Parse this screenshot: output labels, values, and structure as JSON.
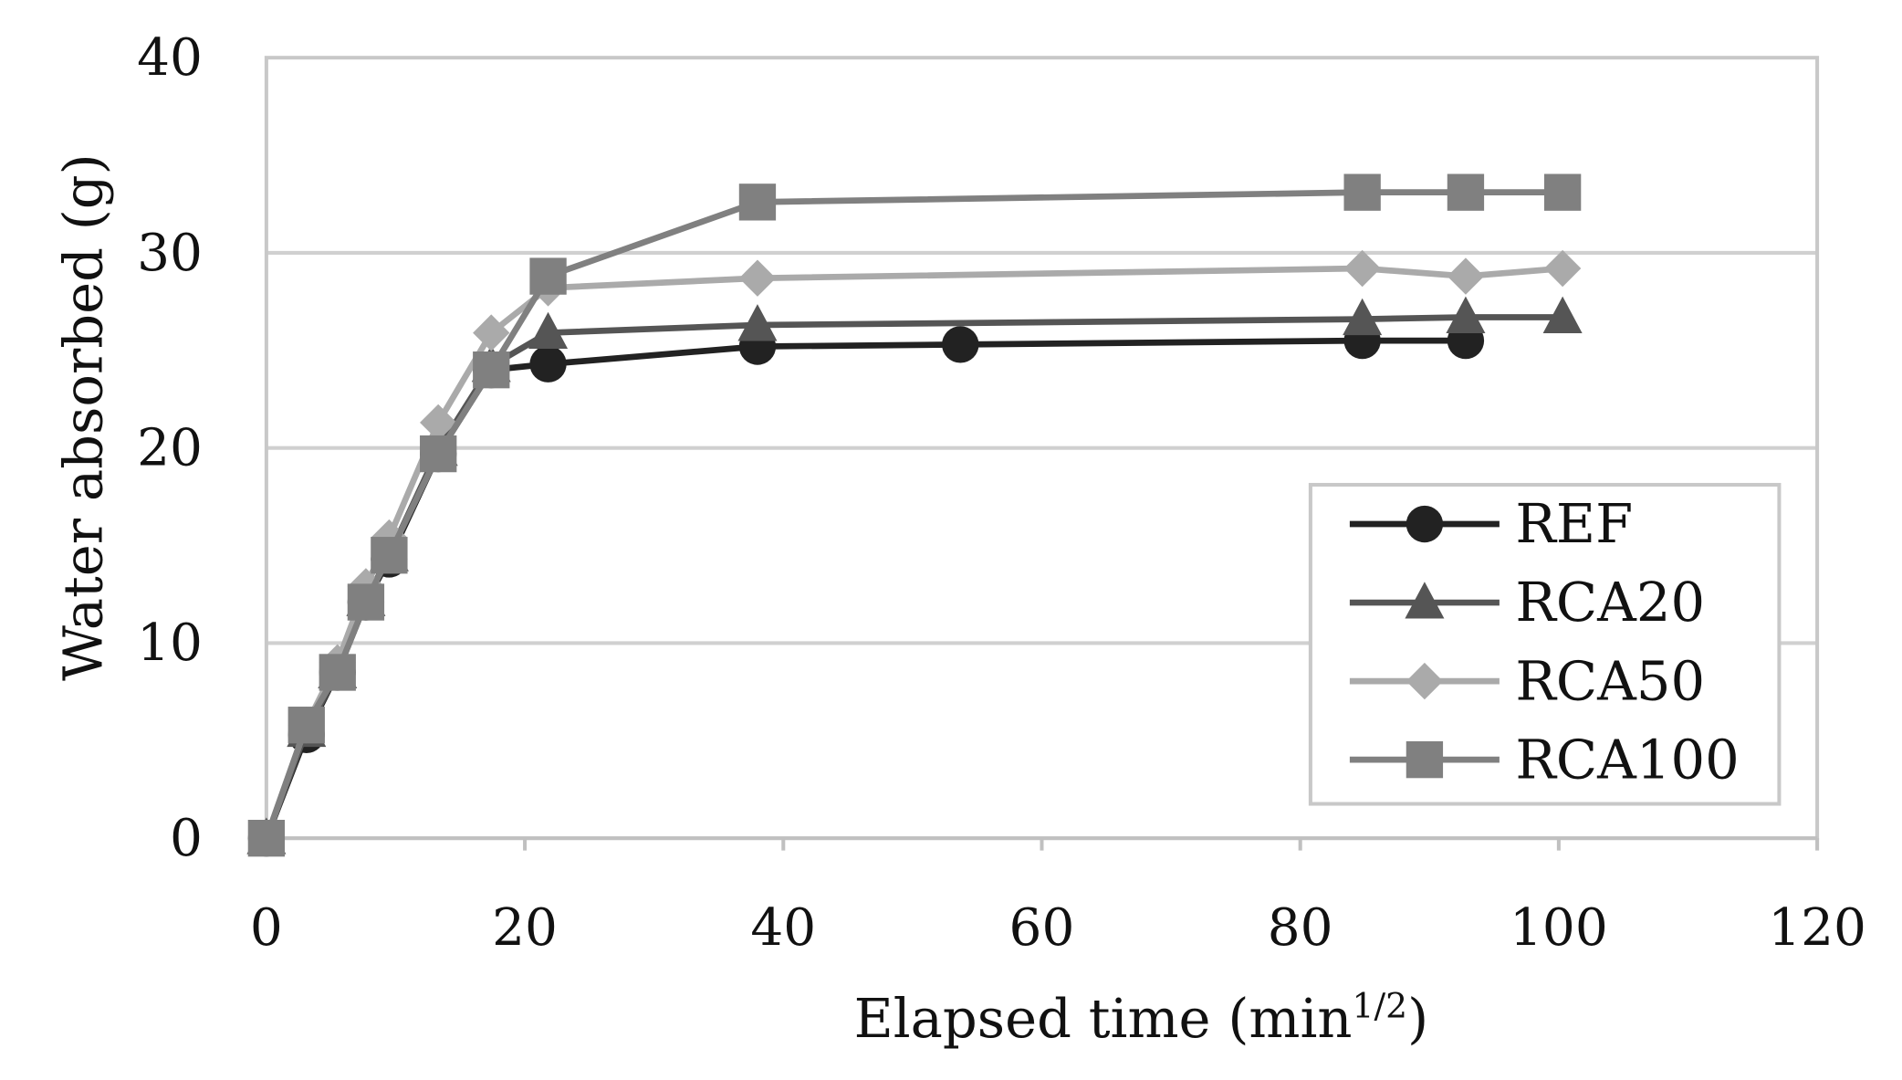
{
  "chart_data": {
    "type": "line",
    "title": "",
    "xlabel": "Elapsed time (min",
    "xlabel_sup": "1/2",
    "xlabel_close": ")",
    "ylabel": "Water absorbed (g)",
    "xlim": [
      0,
      120
    ],
    "ylim": [
      0,
      40
    ],
    "xticks": [
      0,
      20,
      40,
      60,
      80,
      100,
      120
    ],
    "yticks": [
      0,
      10,
      20,
      30,
      40
    ],
    "grid": "horizontal",
    "legend_position": "bottom-right",
    "series": [
      {
        "name": "REF",
        "color": "#222222",
        "marker": "circle",
        "x": [
          0,
          3.1,
          5.5,
          7.7,
          9.5,
          13.3,
          17.4,
          21.8,
          38,
          53.7,
          84.8,
          92.8
        ],
        "y": [
          0,
          5.3,
          8.5,
          12.1,
          14.3,
          19.7,
          24.0,
          24.3,
          25.2,
          25.3,
          25.5,
          25.5
        ]
      },
      {
        "name": "RCA20",
        "color": "#555555",
        "marker": "triangle",
        "x": [
          0,
          3.1,
          5.5,
          7.7,
          9.5,
          13.3,
          17.4,
          21.8,
          38,
          84.8,
          92.8,
          100.3
        ],
        "y": [
          0,
          5.5,
          8.5,
          12.2,
          14.5,
          19.9,
          24.2,
          25.9,
          26.3,
          26.6,
          26.7,
          26.7
        ]
      },
      {
        "name": "RCA50",
        "color": "#aaaaaa",
        "marker": "diamond",
        "x": [
          0,
          3.1,
          5.5,
          7.7,
          9.5,
          13.3,
          17.4,
          21.8,
          38,
          84.8,
          92.8,
          100.3
        ],
        "y": [
          0,
          5.8,
          9.0,
          12.9,
          15.4,
          21.3,
          25.9,
          28.2,
          28.7,
          29.2,
          28.8,
          29.2
        ]
      },
      {
        "name": "RCA100",
        "color": "#808080",
        "marker": "square",
        "x": [
          0,
          3.1,
          5.5,
          7.7,
          9.5,
          13.3,
          17.4,
          21.8,
          38,
          84.8,
          92.8,
          100.3
        ],
        "y": [
          0,
          5.8,
          8.5,
          12.1,
          14.5,
          19.7,
          24.0,
          28.8,
          32.6,
          33.1,
          33.1,
          33.1
        ]
      }
    ]
  }
}
